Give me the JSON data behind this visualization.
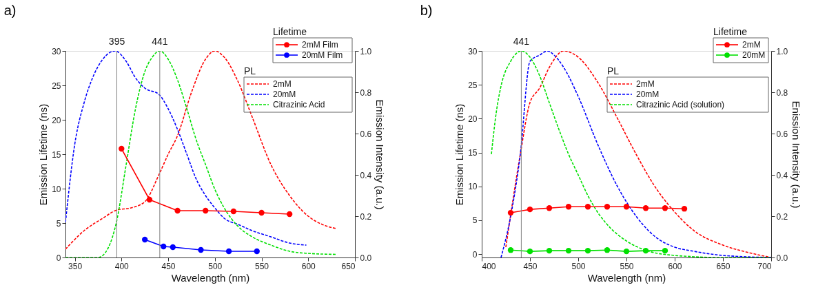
{
  "chart_data": [
    {
      "type": "line",
      "title": "a)",
      "xlabel": "Wavelength (nm)",
      "ylabel": "Emission Lifetime (ns)",
      "y2label": "Emission Intensity (a.u.)",
      "xlim": [
        340,
        650
      ],
      "xticks": [
        350,
        400,
        450,
        500,
        550,
        600,
        650
      ],
      "ylim": [
        0,
        30
      ],
      "yticks": [
        0,
        5,
        10,
        15,
        20,
        25,
        30
      ],
      "y2lim": [
        0,
        1
      ],
      "y2ticks": [
        {
          "value": 0,
          "label": "0.0"
        },
        {
          "value": 0.2,
          "label": "0.2"
        },
        {
          "value": 0.4,
          "label": "0.4"
        },
        {
          "value": 0.6,
          "label": "0.6"
        },
        {
          "value": 0.8,
          "label": "0.8"
        },
        {
          "value": 1,
          "label": "1.0"
        }
      ],
      "legend": "top right",
      "annotations": [
        "Lifetime",
        "PL"
      ],
      "ref_lines": [
        {
          "axis": "x",
          "value": 395,
          "label": "395",
          "color": "#808080"
        },
        {
          "axis": "x",
          "value": 441,
          "label": "441",
          "color": "#808080"
        }
      ],
      "series": [
        {
          "name": "2mM Film",
          "color": "#ff0000",
          "marker": "circle",
          "line_style": "solid",
          "x": [
            400,
            430,
            460,
            490,
            520,
            550,
            580
          ],
          "values": [
            15.8,
            8.4,
            6.8,
            6.8,
            6.7,
            6.5,
            6.3
          ]
        },
        {
          "name": "20mM Film",
          "color": "#0000ff",
          "marker": "circle",
          "line_style": "solid",
          "x": [
            425,
            445,
            455,
            485,
            515,
            545
          ],
          "values": [
            2.6,
            1.6,
            1.5,
            1.1,
            0.9,
            0.9
          ]
        },
        {
          "name": "2mM",
          "color": "#ff0000",
          "marker": "none",
          "line_style": "dashed",
          "axis": "y2",
          "x": [
            340,
            360,
            380,
            395,
            410,
            425,
            440,
            450,
            460,
            475,
            490,
            500,
            510,
            525,
            540,
            560,
            580,
            600,
            615,
            630
          ],
          "values": [
            0.04,
            0.13,
            0.19,
            0.23,
            0.24,
            0.27,
            0.4,
            0.5,
            0.59,
            0.8,
            0.96,
            1.0,
            0.97,
            0.85,
            0.68,
            0.45,
            0.3,
            0.2,
            0.16,
            0.14
          ]
        },
        {
          "name": "20mM",
          "color": "#0000ff",
          "marker": "none",
          "line_style": "dashed",
          "axis": "y2",
          "x": [
            340,
            350,
            360,
            370,
            380,
            393,
            405,
            415,
            425,
            440,
            450,
            460,
            470,
            480,
            490,
            500,
            510,
            525,
            540,
            560,
            580,
            598
          ],
          "values": [
            0.17,
            0.55,
            0.75,
            0.88,
            0.96,
            1.0,
            0.95,
            0.87,
            0.82,
            0.79,
            0.72,
            0.62,
            0.5,
            0.38,
            0.3,
            0.24,
            0.19,
            0.16,
            0.13,
            0.1,
            0.07,
            0.06
          ]
        },
        {
          "name": "Citrazinic Acid",
          "color": "#00e000",
          "marker": "none",
          "line_style": "dashed",
          "axis": "y2",
          "x": [
            340,
            375,
            385,
            395,
            405,
            415,
            425,
            433,
            441,
            450,
            460,
            470,
            480,
            490,
            500,
            510,
            525,
            540,
            560,
            580,
            600,
            630
          ],
          "values": [
            0.0,
            0.0,
            0.04,
            0.18,
            0.45,
            0.72,
            0.9,
            0.97,
            1.0,
            0.96,
            0.86,
            0.72,
            0.57,
            0.45,
            0.33,
            0.24,
            0.15,
            0.1,
            0.06,
            0.03,
            0.02,
            0.015
          ]
        }
      ]
    },
    {
      "type": "line",
      "title": "b)",
      "xlabel": "Wavelength (nm)",
      "ylabel": "Emission Lifetime (ns)",
      "y2label": "Enission Intensity (a.u.)",
      "xlim": [
        400,
        700
      ],
      "xticks": [
        400,
        450,
        500,
        550,
        600,
        650,
        700
      ],
      "ylim": [
        -0.5,
        30
      ],
      "yticks": [
        0,
        5,
        10,
        15,
        20,
        25,
        30
      ],
      "y2lim": [
        0,
        1
      ],
      "y2ticks": [
        {
          "value": 0,
          "label": "0.0"
        },
        {
          "value": 0.2,
          "label": "0.2"
        },
        {
          "value": 0.4,
          "label": "0.4"
        },
        {
          "value": 0.6,
          "label": "0.6"
        },
        {
          "value": 0.8,
          "label": "0.8"
        },
        {
          "value": 1,
          "label": "1.0"
        }
      ],
      "legend": "top right",
      "annotations": [
        "Lifetime",
        "PL"
      ],
      "ref_lines": [
        {
          "axis": "x",
          "value": 441,
          "label": "441",
          "color": "#808080"
        }
      ],
      "series": [
        {
          "name": "2mM",
          "color": "#ff0000",
          "marker": "circle",
          "line_style": "solid",
          "x": [
            430,
            450,
            470,
            490,
            510,
            530,
            550,
            570,
            590,
            610
          ],
          "values": [
            6.1,
            6.6,
            6.8,
            7.0,
            7.0,
            7.0,
            7.0,
            6.8,
            6.8,
            6.7
          ]
        },
        {
          "name": "20mM",
          "color": "#00e000",
          "marker": "circle",
          "line_style": "solid",
          "x": [
            430,
            450,
            470,
            490,
            510,
            530,
            550,
            570,
            590
          ],
          "values": [
            0.6,
            0.4,
            0.5,
            0.5,
            0.5,
            0.6,
            0.4,
            0.5,
            0.5
          ]
        },
        {
          "name": "2mM",
          "color": "#ff0000",
          "marker": "none",
          "line_style": "dashed",
          "axis": "y2",
          "x": [
            425,
            440,
            450,
            460,
            470,
            485,
            500,
            520,
            540,
            560,
            580,
            600,
            620,
            650,
            680,
            700
          ],
          "values": [
            0.05,
            0.5,
            0.75,
            0.82,
            0.92,
            1.0,
            0.97,
            0.85,
            0.68,
            0.5,
            0.34,
            0.22,
            0.13,
            0.06,
            0.02,
            0.0
          ]
        },
        {
          "name": "20mM",
          "color": "#0000ff",
          "marker": "none",
          "line_style": "dashed",
          "axis": "y2",
          "x": [
            420,
            430,
            440,
            450,
            460,
            468,
            475,
            485,
            500,
            520,
            540,
            560,
            580,
            600,
            620,
            650,
            700
          ],
          "values": [
            0.0,
            0.2,
            0.5,
            0.95,
            0.98,
            1.0,
            0.98,
            0.92,
            0.78,
            0.55,
            0.35,
            0.2,
            0.1,
            0.05,
            0.03,
            0.01,
            0.0
          ]
        },
        {
          "name": "Citrazinic Acid (solution)",
          "color": "#00e000",
          "marker": "none",
          "line_style": "dashed",
          "axis": "y2",
          "x": [
            410,
            415,
            420,
            430,
            441,
            450,
            460,
            470,
            480,
            490,
            500,
            510,
            520,
            530,
            550,
            570,
            600,
            650,
            700
          ],
          "values": [
            0.5,
            0.7,
            0.83,
            0.95,
            1.0,
            0.97,
            0.88,
            0.75,
            0.62,
            0.5,
            0.4,
            0.3,
            0.22,
            0.16,
            0.08,
            0.035,
            0.01,
            0.0,
            0.0
          ]
        }
      ]
    }
  ]
}
